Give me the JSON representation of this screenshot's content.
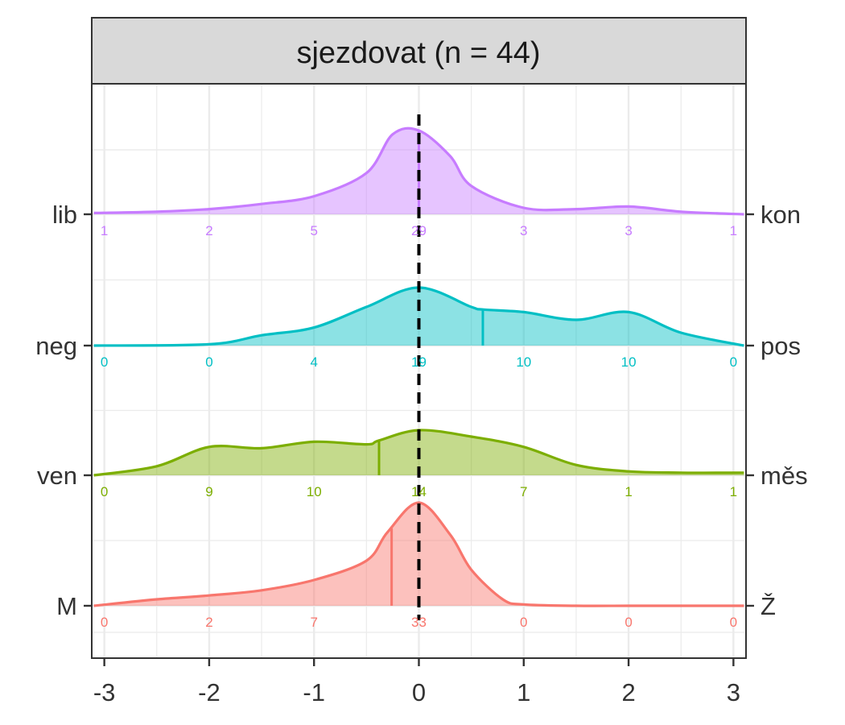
{
  "chart_data": {
    "type": "area",
    "title": "sjezdovat (n = 44)",
    "xlabel": "",
    "ylabel": "",
    "xlim": [
      -3.12,
      3.12
    ],
    "x_ticks": [
      -3,
      -2,
      -1,
      0,
      1,
      2,
      3
    ],
    "x_tick_labels": [
      "-3",
      "-2",
      "-1",
      "0",
      "1",
      "2",
      "3"
    ],
    "grid": true,
    "reference_line_x": 0,
    "series": [
      {
        "left_label": "M",
        "right_label": "Ž",
        "color": "#F8766D",
        "mean": -0.26,
        "curve_x": [
          -3.1,
          -2.5,
          -2.0,
          -1.5,
          -1.0,
          -0.5,
          -0.3,
          0.0,
          0.3,
          0.5,
          0.8,
          1.0,
          1.5,
          2.0,
          2.5,
          3.1
        ],
        "curve_y": [
          0.0,
          0.05,
          0.08,
          0.12,
          0.2,
          0.35,
          0.57,
          0.8,
          0.55,
          0.28,
          0.05,
          0.01,
          0.0,
          0.0,
          0.0,
          0.0
        ],
        "counts": [
          "0",
          "2",
          "7",
          "33",
          "0",
          "0",
          "0"
        ]
      },
      {
        "left_label": "ven",
        "right_label": "měs",
        "color": "#7CAE00",
        "mean": -0.38,
        "curve_x": [
          -3.1,
          -2.5,
          -2.0,
          -1.5,
          -1.0,
          -0.5,
          -0.38,
          0.0,
          0.5,
          1.0,
          1.5,
          2.0,
          2.5,
          3.1
        ],
        "curve_y": [
          0.0,
          0.07,
          0.22,
          0.21,
          0.26,
          0.24,
          0.27,
          0.35,
          0.3,
          0.22,
          0.08,
          0.03,
          0.02,
          0.02
        ],
        "counts": [
          "0",
          "9",
          "10",
          "14",
          "7",
          "1",
          "1"
        ]
      },
      {
        "left_label": "neg",
        "right_label": "pos",
        "color": "#00BFC4",
        "mean": 0.61,
        "curve_x": [
          -3.1,
          -2.0,
          -1.5,
          -1.0,
          -0.5,
          0.0,
          0.5,
          0.61,
          1.0,
          1.5,
          2.0,
          2.5,
          3.1
        ],
        "curve_y": [
          0.0,
          0.01,
          0.08,
          0.14,
          0.3,
          0.45,
          0.3,
          0.28,
          0.26,
          0.2,
          0.26,
          0.1,
          0.0
        ],
        "counts": [
          "0",
          "0",
          "4",
          "19",
          "10",
          "10",
          "0"
        ]
      },
      {
        "left_label": "lib",
        "right_label": "kon",
        "color": "#C77CFF",
        "mean": 0.0,
        "curve_x": [
          -3.1,
          -2.5,
          -2.0,
          -1.5,
          -1.0,
          -0.5,
          -0.25,
          0.0,
          0.3,
          0.5,
          1.0,
          1.5,
          2.0,
          2.5,
          3.1
        ],
        "curve_y": [
          0.01,
          0.02,
          0.04,
          0.08,
          0.14,
          0.32,
          0.62,
          0.65,
          0.45,
          0.22,
          0.05,
          0.04,
          0.06,
          0.02,
          0.0
        ],
        "counts": [
          "1",
          "2",
          "5",
          "29",
          "3",
          "3",
          "1"
        ]
      }
    ]
  }
}
